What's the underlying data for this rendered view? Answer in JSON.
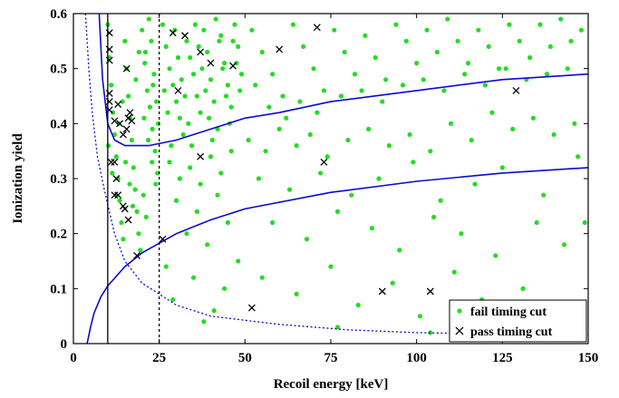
{
  "chart_data": {
    "type": "scatter",
    "xlabel": "Recoil energy [keV]",
    "ylabel": "Ionization yield",
    "xlim": [
      0,
      150
    ],
    "ylim": [
      0,
      0.6
    ],
    "x_ticks": [
      0,
      25,
      50,
      75,
      100,
      125,
      150
    ],
    "y_ticks": [
      0,
      0.1,
      0.2,
      0.3,
      0.4,
      0.5,
      0.6
    ],
    "x_tick_labels": [
      "0",
      "25",
      "50",
      "75",
      "100",
      "125",
      "150"
    ],
    "y_tick_labels": [
      "0",
      "0.1",
      "0.2",
      "0.3",
      "0.4",
      "0.5",
      "0.6"
    ],
    "grid": false,
    "legend_position": "bottom-right",
    "colors": {
      "fail": "#22dd22",
      "pass": "#000000",
      "band": "#0a0ad0"
    },
    "series": [
      {
        "name": "fail timing cut",
        "marker": "dot",
        "color": "#22dd22",
        "points": [
          [
            10,
            0.58
          ],
          [
            10.5,
            0.52
          ],
          [
            11,
            0.47
          ],
          [
            11.5,
            0.42
          ],
          [
            12,
            0.38
          ],
          [
            12.5,
            0.34
          ],
          [
            13,
            0.3
          ],
          [
            13.5,
            0.26
          ],
          [
            14,
            0.22
          ],
          [
            14.5,
            0.19
          ],
          [
            15,
            0.55
          ],
          [
            15.5,
            0.5
          ],
          [
            16,
            0.45
          ],
          [
            16.5,
            0.41
          ],
          [
            17,
            0.37
          ],
          [
            17.5,
            0.32
          ],
          [
            18,
            0.28
          ],
          [
            18.5,
            0.24
          ],
          [
            19,
            0.2
          ],
          [
            19.5,
            0.17
          ],
          [
            10.2,
            0.36
          ],
          [
            11.3,
            0.31
          ],
          [
            12.4,
            0.27
          ],
          [
            13.2,
            0.4
          ],
          [
            14.3,
            0.44
          ],
          [
            15.2,
            0.33
          ],
          [
            16.4,
            0.29
          ],
          [
            17.3,
            0.25
          ],
          [
            18.2,
            0.48
          ],
          [
            19.1,
            0.53
          ],
          [
            20,
            0.57
          ],
          [
            20.8,
            0.51
          ],
          [
            21.5,
            0.46
          ],
          [
            22.3,
            0.43
          ],
          [
            23,
            0.39
          ],
          [
            23.8,
            0.35
          ],
          [
            24.5,
            0.31
          ],
          [
            20.4,
            0.27
          ],
          [
            21.2,
            0.23
          ],
          [
            22,
            0.59
          ],
          [
            22.7,
            0.55
          ],
          [
            23.5,
            0.49
          ],
          [
            24.2,
            0.44
          ],
          [
            20.6,
            0.41
          ],
          [
            21.8,
            0.37
          ],
          [
            22.9,
            0.33
          ],
          [
            24,
            0.29
          ],
          [
            21,
            0.53
          ],
          [
            23.2,
            0.47
          ],
          [
            24.7,
            0.4
          ],
          [
            26,
            0.58
          ],
          [
            27,
            0.54
          ],
          [
            28,
            0.5
          ],
          [
            29,
            0.47
          ],
          [
            30,
            0.44
          ],
          [
            31,
            0.41
          ],
          [
            32,
            0.38
          ],
          [
            33,
            0.55
          ],
          [
            34,
            0.52
          ],
          [
            35,
            0.49
          ],
          [
            36,
            0.45
          ],
          [
            37,
            0.42
          ],
          [
            38,
            0.57
          ],
          [
            39,
            0.53
          ],
          [
            40,
            0.48
          ],
          [
            41,
            0.44
          ],
          [
            42,
            0.39
          ],
          [
            43,
            0.56
          ],
          [
            44,
            0.51
          ],
          [
            45,
            0.47
          ],
          [
            46,
            0.43
          ],
          [
            47,
            0.58
          ],
          [
            48,
            0.54
          ],
          [
            49,
            0.49
          ],
          [
            26.5,
            0.46
          ],
          [
            27.5,
            0.42
          ],
          [
            28.5,
            0.36
          ],
          [
            29.5,
            0.57
          ],
          [
            30.5,
            0.52
          ],
          [
            31.5,
            0.48
          ],
          [
            32.5,
            0.45
          ],
          [
            33.5,
            0.4
          ],
          [
            34.5,
            0.36
          ],
          [
            35.5,
            0.58
          ],
          [
            36.5,
            0.54
          ],
          [
            37.5,
            0.5
          ],
          [
            38.5,
            0.46
          ],
          [
            39.5,
            0.41
          ],
          [
            40.5,
            0.37
          ],
          [
            41.5,
            0.59
          ],
          [
            42.5,
            0.55
          ],
          [
            43.5,
            0.5
          ],
          [
            44.5,
            0.45
          ],
          [
            45.5,
            0.4
          ],
          [
            46.5,
            0.55
          ],
          [
            47.5,
            0.51
          ],
          [
            48.5,
            0.46
          ],
          [
            28,
            0.33
          ],
          [
            31,
            0.3
          ],
          [
            34,
            0.32
          ],
          [
            37,
            0.29
          ],
          [
            40,
            0.34
          ],
          [
            43,
            0.31
          ],
          [
            46,
            0.35
          ],
          [
            30,
            0.26
          ],
          [
            36,
            0.24
          ],
          [
            42,
            0.27
          ],
          [
            33,
            0.2
          ],
          [
            45,
            0.22
          ],
          [
            39,
            0.18
          ],
          [
            48,
            0.15
          ],
          [
            27,
            0.14
          ],
          [
            35,
            0.12
          ],
          [
            44,
            0.1
          ],
          [
            29,
            0.08
          ],
          [
            41,
            0.06
          ],
          [
            38,
            0.04
          ],
          [
            52,
            0.57
          ],
          [
            55,
            0.53
          ],
          [
            58,
            0.49
          ],
          [
            61,
            0.45
          ],
          [
            64,
            0.58
          ],
          [
            67,
            0.54
          ],
          [
            70,
            0.5
          ],
          [
            73,
            0.46
          ],
          [
            76,
            0.57
          ],
          [
            79,
            0.53
          ],
          [
            82,
            0.49
          ],
          [
            85,
            0.56
          ],
          [
            88,
            0.52
          ],
          [
            91,
            0.48
          ],
          [
            94,
            0.58
          ],
          [
            97,
            0.55
          ],
          [
            100,
            0.51
          ],
          [
            103,
            0.57
          ],
          [
            106,
            0.53
          ],
          [
            109,
            0.59
          ],
          [
            112,
            0.55
          ],
          [
            115,
            0.51
          ],
          [
            118,
            0.57
          ],
          [
            121,
            0.54
          ],
          [
            124,
            0.5
          ],
          [
            127,
            0.58
          ],
          [
            130,
            0.55
          ],
          [
            133,
            0.52
          ],
          [
            136,
            0.58
          ],
          [
            139,
            0.54
          ],
          [
            142,
            0.59
          ],
          [
            145,
            0.55
          ],
          [
            148,
            0.57
          ],
          [
            53,
            0.47
          ],
          [
            57,
            0.43
          ],
          [
            62,
            0.41
          ],
          [
            66,
            0.44
          ],
          [
            71,
            0.42
          ],
          [
            78,
            0.45
          ],
          [
            84,
            0.46
          ],
          [
            90,
            0.44
          ],
          [
            96,
            0.47
          ],
          [
            102,
            0.48
          ],
          [
            108,
            0.46
          ],
          [
            114,
            0.49
          ],
          [
            120,
            0.47
          ],
          [
            126,
            0.5
          ],
          [
            132,
            0.48
          ],
          [
            138,
            0.49
          ],
          [
            144,
            0.5
          ],
          [
            51,
            0.37
          ],
          [
            56,
            0.35
          ],
          [
            60,
            0.39
          ],
          [
            65,
            0.36
          ],
          [
            69,
            0.38
          ],
          [
            74,
            0.34
          ],
          [
            80,
            0.37
          ],
          [
            86,
            0.39
          ],
          [
            92,
            0.36
          ],
          [
            98,
            0.38
          ],
          [
            104,
            0.35
          ],
          [
            110,
            0.4
          ],
          [
            116,
            0.37
          ],
          [
            122,
            0.42
          ],
          [
            128,
            0.39
          ],
          [
            134,
            0.41
          ],
          [
            140,
            0.38
          ],
          [
            146,
            0.4
          ],
          [
            54,
            0.3
          ],
          [
            63,
            0.28
          ],
          [
            72,
            0.31
          ],
          [
            81,
            0.27
          ],
          [
            89,
            0.3
          ],
          [
            99,
            0.33
          ],
          [
            107,
            0.26
          ],
          [
            117,
            0.29
          ],
          [
            125,
            0.32
          ],
          [
            137,
            0.27
          ],
          [
            147,
            0.34
          ],
          [
            58,
            0.22
          ],
          [
            68,
            0.19
          ],
          [
            77,
            0.24
          ],
          [
            87,
            0.21
          ],
          [
            95,
            0.17
          ],
          [
            105,
            0.23
          ],
          [
            113,
            0.2
          ],
          [
            123,
            0.16
          ],
          [
            135,
            0.22
          ],
          [
            143,
            0.18
          ],
          [
            55,
            0.12
          ],
          [
            65,
            0.09
          ],
          [
            75,
            0.14
          ],
          [
            83,
            0.07
          ],
          [
            93,
            0.11
          ],
          [
            101,
            0.05
          ],
          [
            111,
            0.13
          ],
          [
            119,
            0.08
          ],
          [
            131,
            0.1
          ],
          [
            141,
            0.06
          ],
          [
            149,
            0.22
          ],
          [
            104,
            0.02
          ],
          [
            77,
            0.03
          ]
        ]
      },
      {
        "name": "pass timing cut",
        "marker": "x",
        "color": "#000000",
        "points": [
          [
            10.5,
            0.565
          ],
          [
            10.5,
            0.535
          ],
          [
            10.5,
            0.515
          ],
          [
            10.5,
            0.455
          ],
          [
            10.5,
            0.44
          ],
          [
            10.5,
            0.425
          ],
          [
            11,
            0.33
          ],
          [
            12,
            0.405
          ],
          [
            12,
            0.33
          ],
          [
            12,
            0.27
          ],
          [
            12.5,
            0.3
          ],
          [
            13,
            0.435
          ],
          [
            13,
            0.27
          ],
          [
            13.5,
            0.4
          ],
          [
            14.5,
            0.38
          ],
          [
            14.5,
            0.25
          ],
          [
            15,
            0.245
          ],
          [
            15.5,
            0.5
          ],
          [
            15.5,
            0.39
          ],
          [
            16,
            0.41
          ],
          [
            16,
            0.225
          ],
          [
            16.5,
            0.42
          ],
          [
            17,
            0.405
          ],
          [
            18.5,
            0.16
          ],
          [
            26,
            0.19
          ],
          [
            29,
            0.565
          ],
          [
            30.5,
            0.46
          ],
          [
            32.5,
            0.56
          ],
          [
            37,
            0.53
          ],
          [
            37,
            0.34
          ],
          [
            40,
            0.51
          ],
          [
            46.5,
            0.505
          ],
          [
            52,
            0.065
          ],
          [
            60,
            0.535
          ],
          [
            71,
            0.575
          ],
          [
            73,
            0.33
          ],
          [
            90,
            0.095
          ],
          [
            104,
            0.095
          ],
          [
            129,
            0.46
          ]
        ]
      }
    ],
    "reference_lines": [
      {
        "name": "threshold",
        "type": "vertical",
        "x": 10,
        "style": "solid"
      },
      {
        "name": "cut",
        "type": "vertical",
        "x": 25,
        "style": "dashed"
      }
    ],
    "curves": [
      {
        "name": "upper-band",
        "style": "solid",
        "points": [
          [
            7.5,
            0.6
          ],
          [
            8.5,
            0.48
          ],
          [
            10,
            0.4
          ],
          [
            12,
            0.37
          ],
          [
            15,
            0.36
          ],
          [
            18,
            0.36
          ],
          [
            22,
            0.36
          ],
          [
            30,
            0.37
          ],
          [
            40,
            0.39
          ],
          [
            50,
            0.41
          ],
          [
            60,
            0.42
          ],
          [
            75,
            0.44
          ],
          [
            100,
            0.46
          ],
          [
            125,
            0.48
          ],
          [
            150,
            0.49
          ]
        ]
      },
      {
        "name": "lower-band",
        "style": "solid",
        "points": [
          [
            4,
            0.0
          ],
          [
            5,
            0.03
          ],
          [
            6,
            0.055
          ],
          [
            8,
            0.085
          ],
          [
            10,
            0.105
          ],
          [
            15,
            0.14
          ],
          [
            20,
            0.165
          ],
          [
            30,
            0.2
          ],
          [
            40,
            0.225
          ],
          [
            50,
            0.245
          ],
          [
            75,
            0.275
          ],
          [
            100,
            0.295
          ],
          [
            125,
            0.31
          ],
          [
            150,
            0.32
          ]
        ]
      },
      {
        "name": "energy-threshold",
        "style": "dotted",
        "points": [
          [
            3.5,
            0.6
          ],
          [
            4.5,
            0.5
          ],
          [
            5.5,
            0.42
          ],
          [
            7,
            0.34
          ],
          [
            9,
            0.28
          ],
          [
            12,
            0.2
          ],
          [
            15,
            0.15
          ],
          [
            20,
            0.11
          ],
          [
            30,
            0.07
          ],
          [
            40,
            0.05
          ],
          [
            60,
            0.035
          ],
          [
            80,
            0.025
          ],
          [
            100,
            0.02
          ],
          [
            125,
            0.017
          ],
          [
            150,
            0.015
          ]
        ]
      }
    ]
  }
}
